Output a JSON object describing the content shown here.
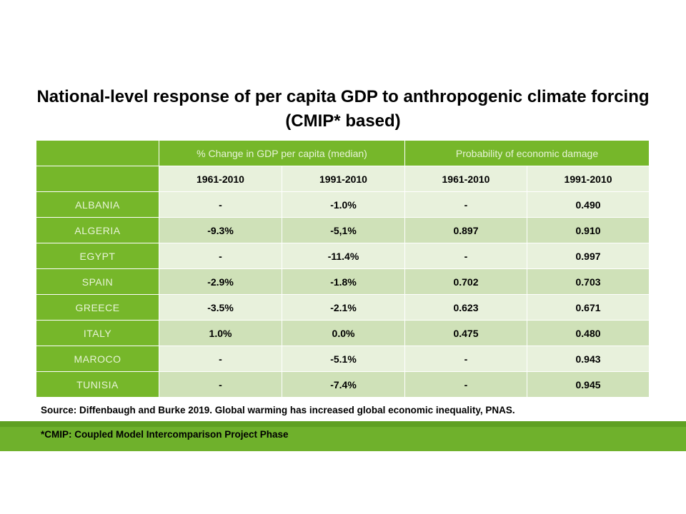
{
  "title_line1": "National-level response of per capita GDP to anthropogenic climate forcing",
  "title_line2": "(CMIP* based)",
  "header": {
    "group1": "% Change in GDP per capita (median)",
    "group2": "Probability of economic damage",
    "periods": [
      "1961-2010",
      "1991-2010",
      "1961-2010",
      "1991-2010"
    ]
  },
  "rows": [
    {
      "country": "ALBANIA",
      "values": [
        "-",
        "-1.0%",
        "-",
        "0.490"
      ]
    },
    {
      "country": "ALGERIA",
      "values": [
        "-9.3%",
        "-5,1%",
        "0.897",
        "0.910"
      ]
    },
    {
      "country": "EGYPT",
      "values": [
        "-",
        "-11.4%",
        "-",
        "0.997"
      ]
    },
    {
      "country": "SPAIN",
      "values": [
        "-2.9%",
        "-1.8%",
        "0.702",
        "0.703"
      ]
    },
    {
      "country": "GREECE",
      "values": [
        "-3.5%",
        "-2.1%",
        "0.623",
        "0.671"
      ]
    },
    {
      "country": "ITALY",
      "values": [
        "1.0%",
        "0.0%",
        "0.475",
        "0.480"
      ]
    },
    {
      "country": "MAROCO",
      "values": [
        "-",
        "-5.1%",
        "-",
        "0.943"
      ]
    },
    {
      "country": "TUNISIA",
      "values": [
        "-",
        "-7.4%",
        "-",
        "0.945"
      ]
    }
  ],
  "source": "Source: Diffenbaugh and Burke 2019. Global warming has increased global economic inequality, PNAS.",
  "note": "*CMIP: Coupled Model Intercomparison Project Phase",
  "colors": {
    "header_green": "#76b72a",
    "row_light": "#e8f1dc",
    "row_mid": "#cfe1b8",
    "footer_green": "#6fb12c"
  }
}
